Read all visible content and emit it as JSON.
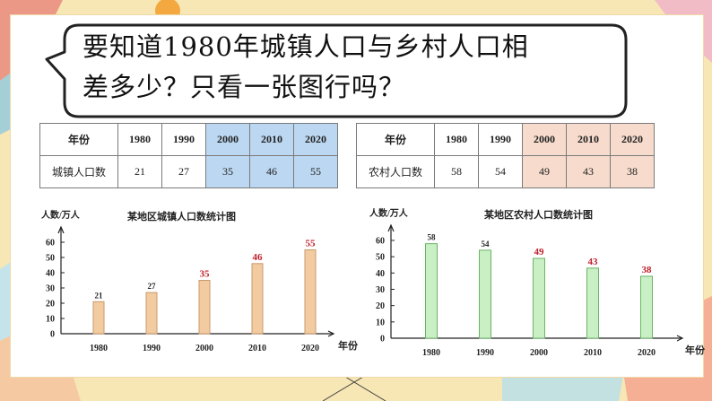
{
  "question": {
    "line1": "要知道1980年城镇人口与乡村人口相",
    "line2": "差多少？只看一张图行吗？"
  },
  "tables": {
    "urban": {
      "row_header": "年份",
      "years": [
        "1980",
        "1990",
        "2000",
        "2010",
        "2020"
      ],
      "value_header": "城镇人口数",
      "values": [
        "21",
        "27",
        "35",
        "46",
        "55"
      ]
    },
    "rural": {
      "row_header": "年份",
      "years": [
        "1980",
        "1990",
        "2000",
        "2010",
        "2020"
      ],
      "value_header": "农村人口数",
      "values": [
        "58",
        "54",
        "49",
        "43",
        "38"
      ]
    }
  },
  "colors": {
    "urban_bar": "#f2cba1",
    "urban_bar_stroke": "#c99a6b",
    "rural_bar": "#c9f0c4",
    "rural_bar_stroke": "#6bb366",
    "highlight_label": "#c0202a",
    "urban_highlight_cell": "#bcd7f1",
    "rural_highlight_cell": "#f7dccd"
  },
  "chart_data": [
    {
      "type": "bar",
      "title": "某地区城镇人口数统计图",
      "ylabel": "人数/万人",
      "xlabel": "年份",
      "categories": [
        "1980",
        "1990",
        "2000",
        "2010",
        "2020"
      ],
      "values": [
        21,
        27,
        35,
        46,
        55
      ],
      "yticks": [
        "0",
        "10",
        "20",
        "30",
        "40",
        "50",
        "60"
      ],
      "ylim": [
        0,
        60
      ],
      "highlighted_labels": [
        "2000",
        "2010",
        "2020"
      ]
    },
    {
      "type": "bar",
      "title": "某地区农村人口数统计图",
      "ylabel": "人数/万人",
      "xlabel": "年份",
      "categories": [
        "1980",
        "1990",
        "2000",
        "2010",
        "2020"
      ],
      "values": [
        58,
        54,
        49,
        43,
        38
      ],
      "yticks": [
        "0",
        "10",
        "20",
        "30",
        "40",
        "50",
        "60"
      ],
      "ylim": [
        0,
        60
      ],
      "highlighted_labels": [
        "2000",
        "2010",
        "2020"
      ]
    }
  ]
}
